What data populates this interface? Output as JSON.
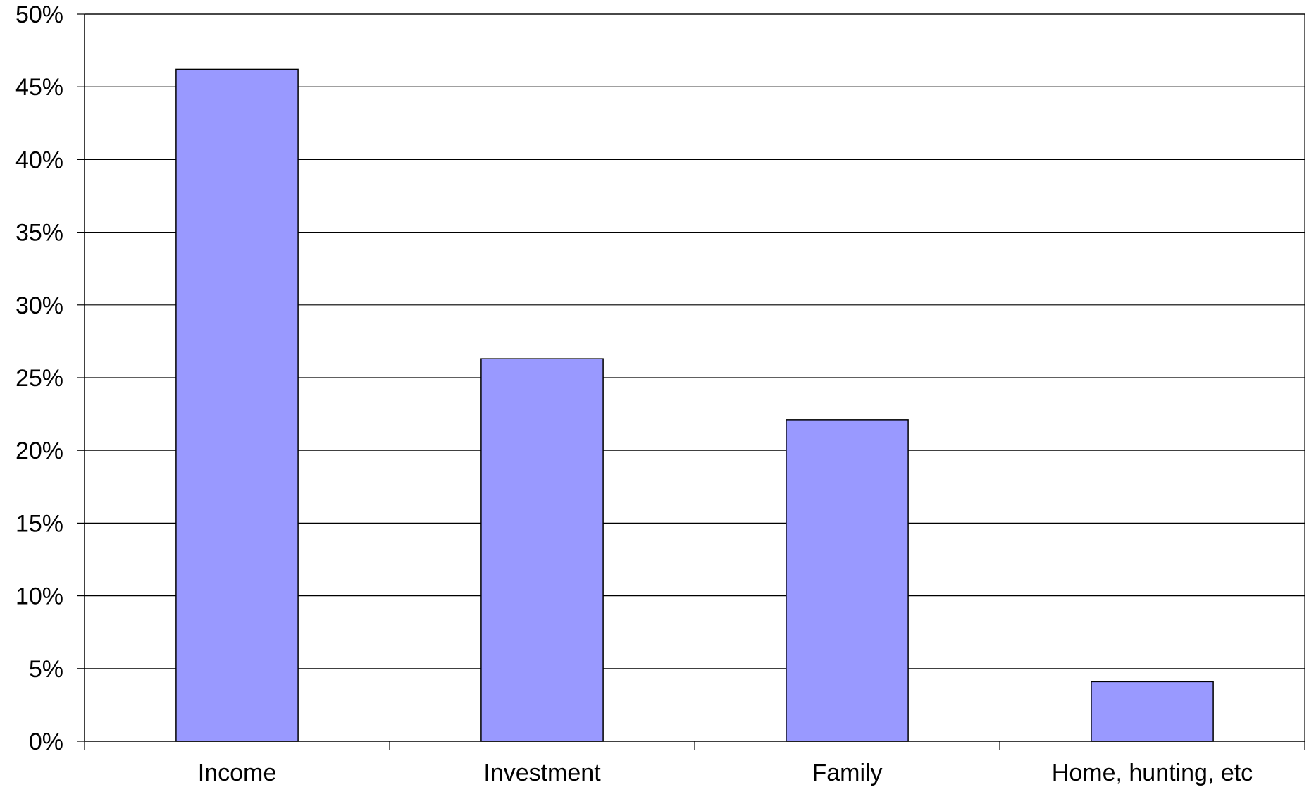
{
  "chart_data": {
    "type": "bar",
    "title": "",
    "xlabel": "",
    "ylabel": "",
    "categories": [
      "Income",
      "Investment",
      "Family",
      "Home, hunting, etc"
    ],
    "values": [
      46.2,
      26.3,
      22.1,
      4.1
    ],
    "value_unit": "%",
    "ylim": [
      0,
      50
    ],
    "y_ticks": [
      0,
      5,
      10,
      15,
      20,
      25,
      30,
      35,
      40,
      45,
      50
    ],
    "y_tick_labels": [
      "0%",
      "5%",
      "10%",
      "15%",
      "20%",
      "25%",
      "30%",
      "35%",
      "40%",
      "45%",
      "50%"
    ],
    "grid": true,
    "legend": "none",
    "colors": {
      "bar_fill": "#9999ff",
      "bar_stroke": "#000000",
      "grid": "#000000",
      "axis": "#000000",
      "background": "#ffffff"
    }
  }
}
